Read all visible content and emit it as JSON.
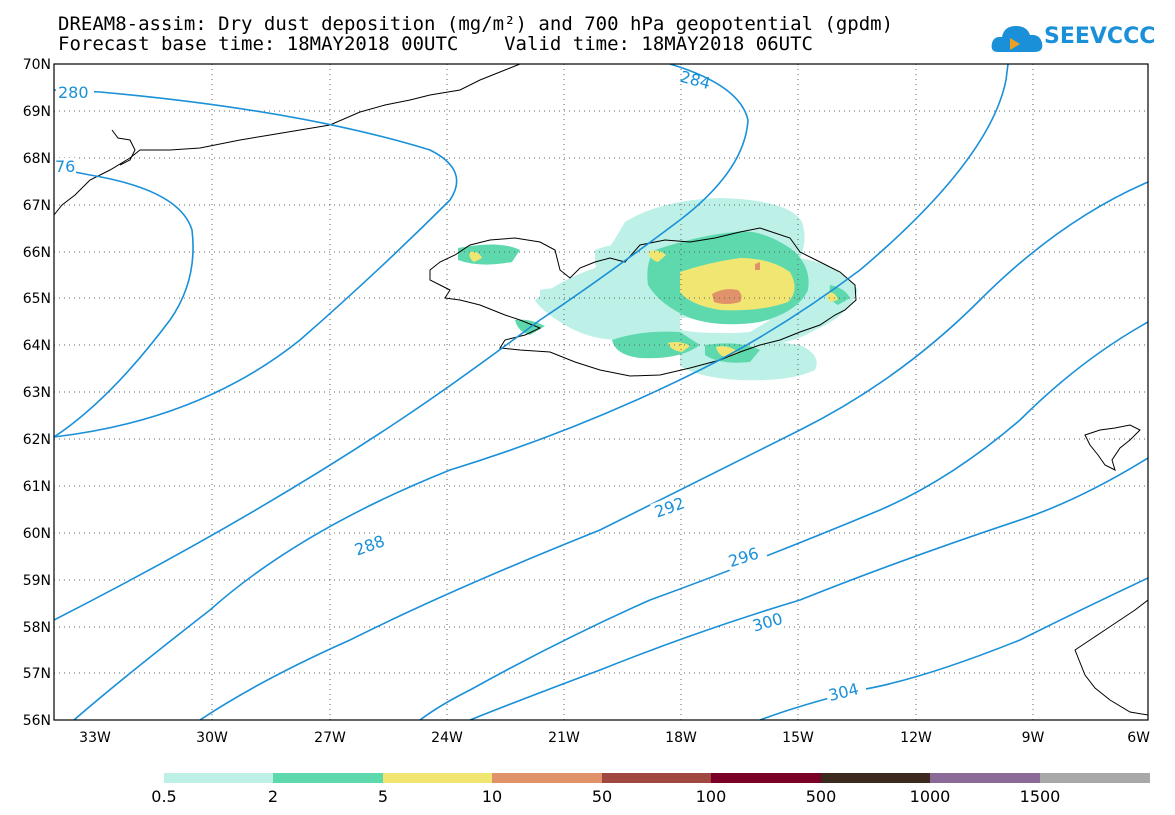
{
  "header": {
    "title_line1": "DREAM8-assim: Dry dust deposition (mg/m²) and 700 hPa geopotential (gpdm)",
    "title_line2": "Forecast base time: 18MAY2018 00UTC    Valid time: 18MAY2018 06UTC",
    "logo_text": "SEEVCCC"
  },
  "map": {
    "lat_labels": [
      "70N",
      "69N",
      "68N",
      "67N",
      "66N",
      "65N",
      "64N",
      "63N",
      "62N",
      "61N",
      "60N",
      "59N",
      "58N",
      "57N",
      "56N"
    ],
    "lon_labels": [
      "33W",
      "30W",
      "27W",
      "24W",
      "21W",
      "18W",
      "15W",
      "12W",
      "9W",
      "6W"
    ],
    "contour_labels": [
      "280",
      "76",
      "284",
      "288",
      "292",
      "296",
      "300",
      "304"
    ],
    "colors": {
      "contour": "#1a90d8",
      "coast": "#000000"
    }
  },
  "legend": {
    "labels": [
      "0.5",
      "2",
      "5",
      "10",
      "50",
      "100",
      "500",
      "1000",
      "1500"
    ],
    "colors": [
      "#bdf0e6",
      "#5ed9ae",
      "#f2e673",
      "#e0926a",
      "#a0473f",
      "#7a0026",
      "#3d2a1e",
      "#8b6a98",
      "#a8a8a8"
    ]
  }
}
